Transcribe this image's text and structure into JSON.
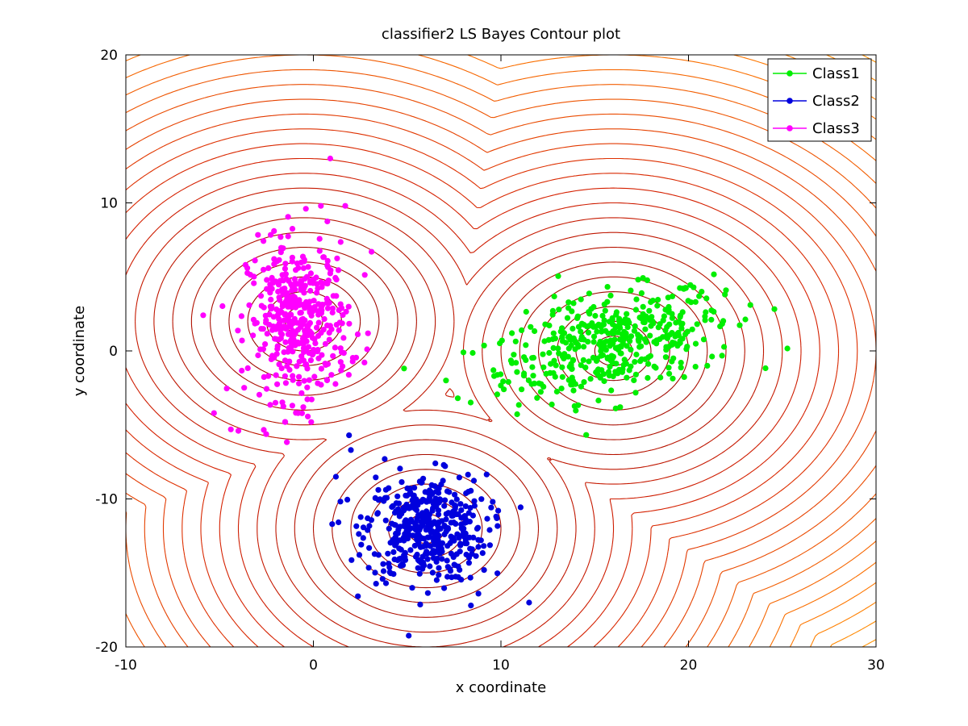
{
  "chart_data": {
    "type": "scatter",
    "title": "classifier2 LS Bayes Contour plot",
    "xlabel": "x coordinate",
    "ylabel": "y coordinate",
    "xlim": [
      -10,
      30
    ],
    "ylim": [
      -20,
      20
    ],
    "x_ticks": [
      -10,
      0,
      10,
      20,
      30
    ],
    "y_ticks": [
      -20,
      -10,
      0,
      10,
      20
    ],
    "x_tick_labels": [
      "-10",
      "0",
      "10",
      "20",
      "30"
    ],
    "y_tick_labels": [
      "-20",
      "-10",
      "0",
      "10",
      "20"
    ],
    "grid": false,
    "legend_position": "top-right",
    "background_contours": {
      "kind": "iso-distance contours around class means",
      "centers": [
        [
          -0.5,
          2.0
        ],
        [
          6.0,
          -12.0
        ],
        [
          16.0,
          0.0
        ]
      ],
      "spacing": 1.0,
      "levels": 72,
      "colormap": [
        "#8b0000",
        "#d62000",
        "#ff7a00",
        "#ffd000",
        "#a6e01a",
        "#22c8c0",
        "#2a6ad8",
        "#00127a"
      ]
    },
    "series": [
      {
        "name": "Class1",
        "color": "#00ee00",
        "center": [
          16.0,
          0.5
        ],
        "spread": [
          3.2,
          1.6
        ],
        "rotation_deg": 18,
        "count": 420,
        "extra_points": [
          [
            7.7,
            -3.2
          ],
          [
            8.0,
            -0.1
          ],
          [
            12.8,
            -1.5
          ],
          [
            21.0,
            -1.0
          ],
          [
            23.3,
            3.1
          ],
          [
            22.0,
            4.1
          ],
          [
            18.1,
            3.4
          ],
          [
            20.7,
            4.0
          ],
          [
            17.5,
            3.9
          ],
          [
            9.6,
            -1.3
          ],
          [
            10.4,
            -2.1
          ],
          [
            11.1,
            -2.6
          ],
          [
            10.8,
            -0.8
          ]
        ]
      },
      {
        "name": "Class2",
        "color": "#0000dd",
        "center": [
          6.0,
          -12.0
        ],
        "spread": [
          1.6,
          1.8
        ],
        "rotation_deg": 0,
        "count": 420,
        "extra_points": [
          [
            1.9,
            -5.7
          ],
          [
            1.0,
            -11.7
          ],
          [
            11.5,
            -17.0
          ],
          [
            9.4,
            -12.1
          ],
          [
            8.8,
            -16.4
          ],
          [
            8.4,
            -17.2
          ],
          [
            3.8,
            -7.3
          ],
          [
            2.0,
            -6.7
          ],
          [
            9.1,
            -14.8
          ],
          [
            1.2,
            -8.5
          ]
        ]
      },
      {
        "name": "Class3",
        "color": "#ff00ff",
        "center": [
          -0.8,
          2.0
        ],
        "spread": [
          1.35,
          2.6
        ],
        "rotation_deg": 0,
        "count": 420,
        "extra_points": [
          [
            0.9,
            13.0
          ],
          [
            -0.4,
            9.6
          ],
          [
            1.7,
            9.8
          ],
          [
            3.1,
            6.7
          ],
          [
            -5.3,
            -4.2
          ],
          [
            -4.0,
            -5.4
          ],
          [
            -4.4,
            -5.3
          ],
          [
            -1.5,
            -4.8
          ],
          [
            0.4,
            9.8
          ],
          [
            -2.1,
            8.1
          ]
        ]
      }
    ]
  }
}
